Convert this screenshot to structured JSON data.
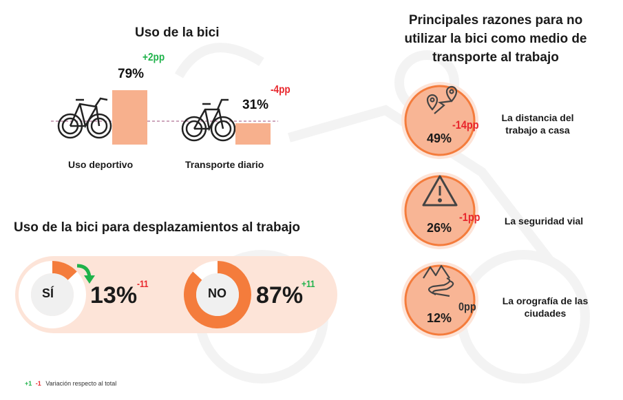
{
  "uso_bici": {
    "title": "Uso de la bici",
    "items": [
      {
        "label": "Uso deportivo",
        "value": 79,
        "value_label": "79%",
        "delta": "+2pp"
      },
      {
        "label": "Transporte diario",
        "value": 31,
        "value_label": "31%",
        "delta": "-4pp"
      }
    ]
  },
  "desplazamientos": {
    "title": "Uso de la bici para desplazamientos al trabajo",
    "si": {
      "label": "SÍ",
      "value": 13,
      "value_label": "13%",
      "delta": "-11"
    },
    "no": {
      "label": "NO",
      "value": 87,
      "value_label": "87%",
      "delta": "+11"
    }
  },
  "razones": {
    "title_lines": [
      "Principales razones para no",
      "utilizar la bici como medio de",
      "transporte al trabajo"
    ],
    "items": [
      {
        "icon": "map-distance-icon",
        "value_label": "49%",
        "delta": "-14pp",
        "label_lines": [
          "La distancia del",
          "trabajo a casa"
        ]
      },
      {
        "icon": "warning-icon",
        "value_label": "26%",
        "delta": "-1pp",
        "label_lines": [
          "La seguridad vial"
        ]
      },
      {
        "icon": "mountain-road-icon",
        "value_label": "12%",
        "delta": "0pp",
        "label_lines": [
          "La orografía de las",
          "ciudades"
        ]
      }
    ]
  },
  "legend": {
    "pos": "+1",
    "neg": "-1",
    "text": "Variación respecto al total"
  },
  "colors": {
    "orange": "#f47c3c",
    "bar": "#f7b08d",
    "light": "#fde4d8",
    "positive": "#1fb24a",
    "negative": "#e8262c"
  },
  "chart_data": [
    {
      "type": "bar",
      "title": "Uso de la bici",
      "categories": [
        "Uso deportivo",
        "Transporte diario"
      ],
      "values": [
        79,
        31
      ],
      "deltas": [
        "+2pp",
        "-4pp"
      ],
      "ylim": [
        0,
        100
      ]
    },
    {
      "type": "pie",
      "title": "Uso de la bici para desplazamientos al trabajo",
      "categories": [
        "SÍ",
        "NO"
      ],
      "values": [
        13,
        87
      ],
      "deltas": [
        "-11",
        "+11"
      ]
    },
    {
      "type": "table",
      "title": "Principales razones para no utilizar la bici como medio de transporte al trabajo",
      "categories": [
        "La distancia del trabajo a casa",
        "La seguridad vial",
        "La orografía de las ciudades"
      ],
      "values": [
        49,
        26,
        12
      ],
      "deltas": [
        "-14pp",
        "-1pp",
        "0pp"
      ]
    }
  ]
}
